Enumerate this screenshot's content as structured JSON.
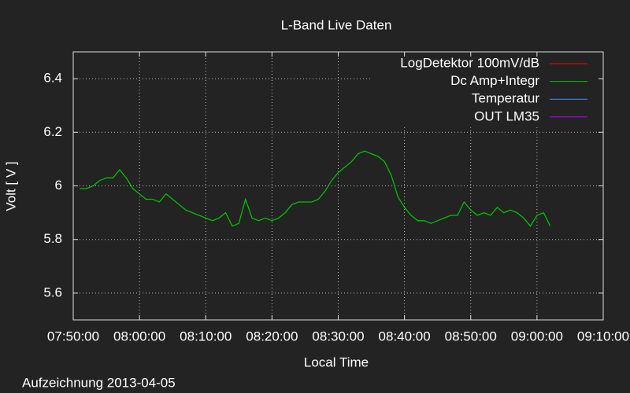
{
  "chart_data": {
    "type": "line",
    "title": "L-Band Live Daten",
    "x_label": "Local Time",
    "y_label": "Volt [ V ]",
    "footnote": "Aufzeichnung 2013-04-05",
    "x": [
      "07:51:00",
      "07:52:00",
      "07:53:00",
      "07:54:00",
      "07:55:00",
      "07:56:00",
      "07:57:00",
      "07:58:00",
      "07:59:00",
      "08:00:00",
      "08:01:00",
      "08:02:00",
      "08:03:00",
      "08:04:00",
      "08:05:00",
      "08:06:00",
      "08:07:00",
      "08:08:00",
      "08:09:00",
      "08:10:00",
      "08:11:00",
      "08:12:00",
      "08:13:00",
      "08:14:00",
      "08:15:00",
      "08:16:00",
      "08:17:00",
      "08:18:00",
      "08:19:00",
      "08:20:00",
      "08:21:00",
      "08:22:00",
      "08:23:00",
      "08:24:00",
      "08:25:00",
      "08:26:00",
      "08:27:00",
      "08:28:00",
      "08:29:00",
      "08:30:00",
      "08:31:00",
      "08:32:00",
      "08:33:00",
      "08:34:00",
      "08:35:00",
      "08:36:00",
      "08:37:00",
      "08:38:00",
      "08:39:00",
      "08:40:00",
      "08:41:00",
      "08:42:00",
      "08:43:00",
      "08:44:00",
      "08:45:00",
      "08:46:00",
      "08:47:00",
      "08:48:00",
      "08:49:00",
      "08:50:00",
      "08:51:00",
      "08:52:00",
      "08:53:00",
      "08:54:00",
      "08:55:00",
      "08:56:00",
      "08:57:00",
      "08:58:00",
      "08:59:00",
      "09:00:00",
      "09:01:00",
      "09:02:00"
    ],
    "series": [
      {
        "name": "LogDetektor 100mV/dB",
        "color": "#ff0000",
        "values": [
          null,
          null,
          null,
          null,
          null,
          null,
          null,
          null,
          null,
          null,
          null,
          null,
          null,
          null,
          null,
          null,
          null,
          null,
          null,
          null,
          null,
          null,
          null,
          null,
          null,
          null,
          null,
          null,
          null,
          null,
          null,
          null,
          null,
          null,
          null,
          null,
          null,
          null,
          null,
          null,
          null,
          null,
          null,
          null,
          null,
          null,
          null,
          null,
          null,
          null,
          null,
          null,
          null,
          null,
          null,
          null,
          null,
          null,
          null,
          null,
          null,
          null,
          null,
          null,
          null,
          null,
          null,
          null,
          null,
          null,
          null,
          null
        ]
      },
      {
        "name": "Dc Amp+Integr",
        "color": "#00c000",
        "values": [
          5.99,
          5.99,
          6.0,
          6.02,
          6.03,
          6.03,
          6.06,
          6.03,
          5.99,
          5.97,
          5.95,
          5.95,
          5.94,
          5.97,
          5.95,
          5.93,
          5.91,
          5.9,
          5.89,
          5.88,
          5.87,
          5.88,
          5.9,
          5.85,
          5.86,
          5.95,
          5.88,
          5.87,
          5.88,
          5.87,
          5.88,
          5.9,
          5.93,
          5.94,
          5.94,
          5.94,
          5.95,
          5.98,
          6.02,
          6.05,
          6.07,
          6.09,
          6.12,
          6.13,
          6.12,
          6.11,
          6.09,
          6.04,
          5.96,
          5.92,
          5.89,
          5.87,
          5.87,
          5.86,
          5.87,
          5.88,
          5.89,
          5.89,
          5.94,
          5.91,
          5.89,
          5.9,
          5.89,
          5.92,
          5.9,
          5.91,
          5.9,
          5.88,
          5.85,
          5.89,
          5.9,
          5.85
        ]
      },
      {
        "name": "Temperatur",
        "color": "#3a8fff",
        "values": [
          null,
          null,
          null,
          null,
          null,
          null,
          null,
          null,
          null,
          null,
          null,
          null,
          null,
          null,
          null,
          null,
          null,
          null,
          null,
          null,
          null,
          null,
          null,
          null,
          null,
          null,
          null,
          null,
          null,
          null,
          null,
          null,
          null,
          null,
          null,
          null,
          null,
          null,
          null,
          null,
          null,
          null,
          null,
          null,
          null,
          null,
          null,
          null,
          null,
          null,
          null,
          null,
          null,
          null,
          null,
          null,
          null,
          null,
          null,
          null,
          null,
          null,
          null,
          null,
          null,
          null,
          null,
          null,
          null,
          null,
          null,
          null
        ]
      },
      {
        "name": "OUT LM35",
        "color": "#c000ff",
        "values": [
          null,
          null,
          null,
          null,
          null,
          null,
          null,
          null,
          null,
          null,
          null,
          null,
          null,
          null,
          null,
          null,
          null,
          null,
          null,
          null,
          null,
          null,
          null,
          null,
          null,
          null,
          null,
          null,
          null,
          null,
          null,
          null,
          null,
          null,
          null,
          null,
          null,
          null,
          null,
          null,
          null,
          null,
          null,
          null,
          null,
          null,
          null,
          null,
          null,
          null,
          null,
          null,
          null,
          null,
          null,
          null,
          null,
          null,
          null,
          null,
          null,
          null,
          null,
          null,
          null,
          null,
          null,
          null,
          null,
          null,
          null,
          null
        ]
      }
    ],
    "xlim": [
      "07:50:00",
      "09:10:00"
    ],
    "xticks": [
      "07:50:00",
      "08:00:00",
      "08:10:00",
      "08:20:00",
      "08:30:00",
      "08:40:00",
      "08:50:00",
      "09:00:00",
      "09:10:00"
    ],
    "ylim": [
      5.5,
      6.5
    ],
    "yticks": [
      5.6,
      5.8,
      6,
      6.2,
      6.4
    ],
    "grid": true,
    "legend": "top-right"
  }
}
